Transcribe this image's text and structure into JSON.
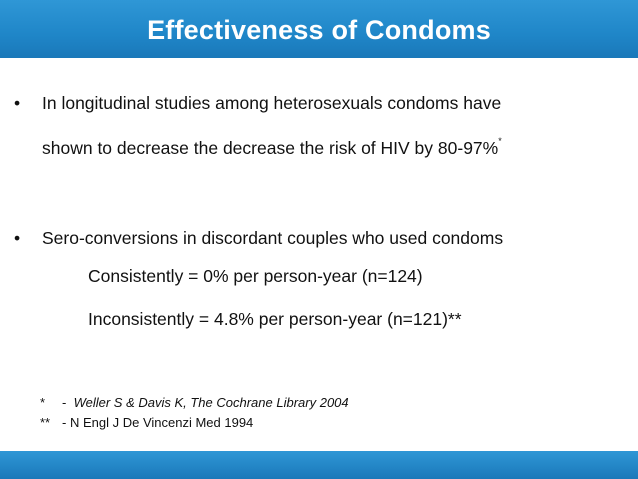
{
  "slide": {
    "title": "Effectiveness of Condoms",
    "bullets": [
      {
        "marker": "•",
        "line1": "In longitudinal studies among heterosexuals condoms have",
        "line2": "shown to decrease the decrease the risk of HIV by 80-97%",
        "footnote_mark": "*"
      },
      {
        "marker": "•",
        "line1": "Sero-conversions in discordant couples who used condoms"
      }
    ],
    "sub_lines": [
      "Consistently = 0% per person-year (n=124)",
      "Inconsistently = 4.8% per person-year (n=121)**"
    ],
    "references": [
      {
        "mark": "*",
        "sep": "-",
        "text": "Weller S & Davis K, The Cochrane Library 2004"
      },
      {
        "mark": "**",
        "sep": "-",
        "text": "N Engl J De Vincenzi Med 1994"
      }
    ]
  },
  "colors": {
    "title_bar": "#1f86c8",
    "title_text": "#ffffff",
    "body_text": "#111111"
  }
}
